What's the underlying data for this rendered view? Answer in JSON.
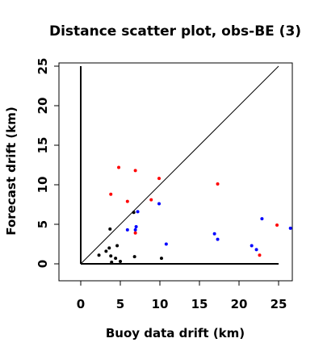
{
  "chart_data": {
    "type": "scatter",
    "title": "Distance scatter plot, obs-BE (3)",
    "xlabel": "Buoy data drift (km)",
    "ylabel": "Forecast drift (km)",
    "xlim": [
      -3,
      26.5
    ],
    "ylim": [
      -2,
      26
    ],
    "xticks": [
      "0",
      "5",
      "10",
      "15",
      "20",
      "25"
    ],
    "yticks": [
      "0",
      "5",
      "10",
      "15",
      "20",
      "25"
    ],
    "grid": false,
    "reference_lines": {
      "identity": {
        "from": [
          0,
          0
        ],
        "to": [
          25,
          25
        ]
      },
      "x_axis_line": {
        "from": [
          0,
          0
        ],
        "to": [
          25,
          0
        ]
      },
      "y_axis_line": {
        "from": [
          0,
          0
        ],
        "to": [
          0,
          25
        ]
      }
    },
    "series": [
      {
        "color": "#000000",
        "points": [
          [
            2.3,
            1.1
          ],
          [
            3.2,
            1.6
          ],
          [
            3.6,
            2.0
          ],
          [
            3.7,
            4.4
          ],
          [
            3.8,
            1.0
          ],
          [
            3.9,
            0.2
          ],
          [
            4.4,
            0.7
          ],
          [
            4.6,
            2.3
          ],
          [
            5.0,
            0.3
          ],
          [
            6.7,
            6.5
          ],
          [
            6.8,
            0.9
          ],
          [
            10.2,
            0.7
          ]
        ]
      },
      {
        "color": "#0000ff",
        "points": [
          [
            5.9,
            4.3
          ],
          [
            6.9,
            4.3
          ],
          [
            7.0,
            4.7
          ],
          [
            7.2,
            6.6
          ],
          [
            9.9,
            7.6
          ],
          [
            10.8,
            2.5
          ],
          [
            16.9,
            3.8
          ],
          [
            17.3,
            3.1
          ],
          [
            21.6,
            2.3
          ],
          [
            22.2,
            1.8
          ],
          [
            22.9,
            5.7
          ],
          [
            26.5,
            4.5
          ]
        ]
      },
      {
        "color": "#ff0000",
        "points": [
          [
            3.8,
            8.8
          ],
          [
            4.8,
            12.2
          ],
          [
            5.9,
            7.9
          ],
          [
            6.9,
            11.8
          ],
          [
            6.9,
            3.9
          ],
          [
            8.9,
            8.1
          ],
          [
            9.9,
            10.8
          ],
          [
            17.3,
            10.1
          ],
          [
            22.6,
            1.1
          ],
          [
            24.8,
            4.9
          ]
        ]
      }
    ],
    "colors": {
      "axis": "#000000",
      "point_black": "#000000",
      "point_blue": "#0000ff",
      "point_red": "#ff0000"
    }
  }
}
